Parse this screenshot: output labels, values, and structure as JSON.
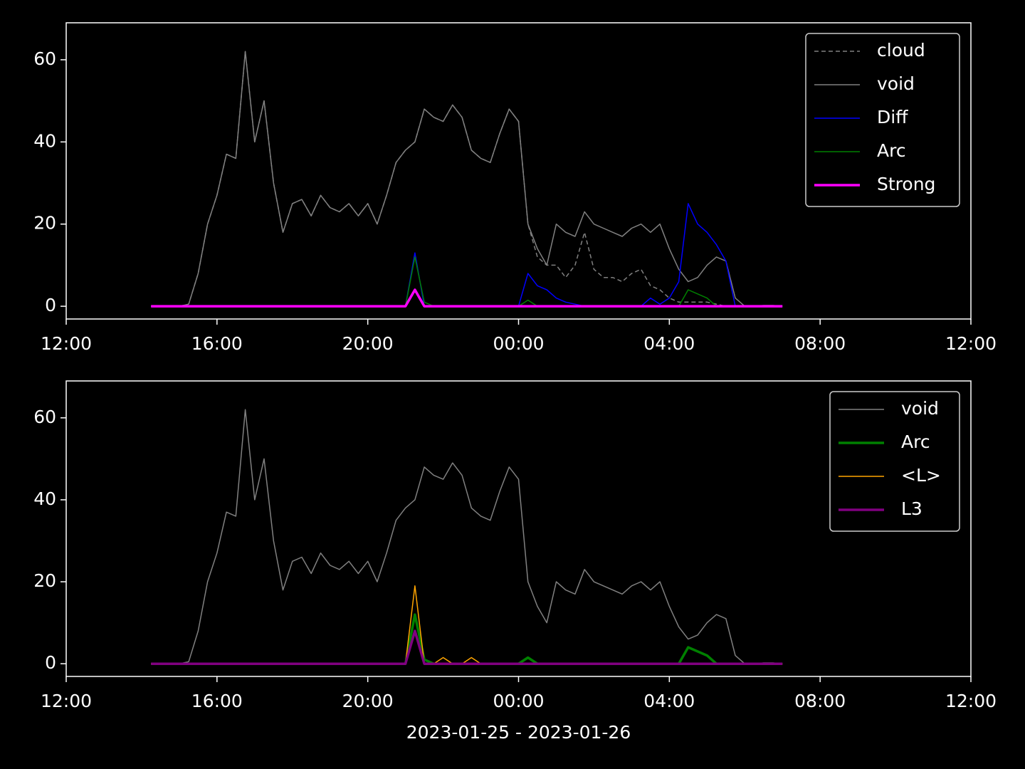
{
  "chart_data": [
    {
      "type": "line",
      "x": [
        2.25,
        2.5,
        2.75,
        3.0,
        3.25,
        3.5,
        3.75,
        4.0,
        4.25,
        4.5,
        4.75,
        5.0,
        5.25,
        5.5,
        5.75,
        6.0,
        6.25,
        6.5,
        6.75,
        7.0,
        7.25,
        7.5,
        7.75,
        8.0,
        8.25,
        8.5,
        8.75,
        9.0,
        9.25,
        9.5,
        9.75,
        10.0,
        10.25,
        10.5,
        10.75,
        11.0,
        11.25,
        11.5,
        11.75,
        12.0,
        12.25,
        12.5,
        12.75,
        13.0,
        13.25,
        13.5,
        13.75,
        14.0,
        14.25,
        14.5,
        14.75,
        15.0,
        15.25,
        15.5,
        15.75,
        16.0,
        16.25,
        16.5,
        16.75,
        17.0,
        17.25,
        17.5,
        17.75,
        18.0,
        18.25,
        18.5,
        18.75,
        19.0
      ],
      "series": [
        {
          "name": "cloud",
          "color": "#808080",
          "dashed": true,
          "linewidth": 1.5,
          "values": [
            0,
            0,
            0,
            0,
            0.5,
            8,
            20,
            27,
            37,
            36,
            62,
            40,
            50,
            30,
            18,
            25,
            26,
            22,
            27,
            24,
            23,
            25,
            22,
            25,
            20,
            27,
            35,
            38,
            40,
            48,
            46,
            45,
            49,
            46,
            38,
            36,
            35,
            42,
            48,
            45,
            20,
            12,
            10,
            10,
            7,
            10,
            18,
            9,
            7,
            7,
            6,
            8,
            9,
            5,
            4,
            2,
            1,
            1,
            1,
            1,
            0.5,
            0,
            0,
            0,
            0,
            0,
            0,
            0
          ]
        },
        {
          "name": "void",
          "color": "#808080",
          "dashed": false,
          "linewidth": 1.5,
          "values": [
            0,
            0,
            0,
            0,
            0.5,
            8,
            20,
            27,
            37,
            36,
            62,
            40,
            50,
            30,
            18,
            25,
            26,
            22,
            27,
            24,
            23,
            25,
            22,
            25,
            20,
            27,
            35,
            38,
            40,
            48,
            46,
            45,
            49,
            46,
            38,
            36,
            35,
            42,
            48,
            45,
            20,
            14,
            10,
            20,
            18,
            17,
            23,
            20,
            19,
            18,
            17,
            19,
            20,
            18,
            20,
            14,
            9,
            6,
            7,
            10,
            12,
            11,
            2,
            0,
            0,
            0.2,
            0.2,
            0
          ]
        },
        {
          "name": "Diff",
          "color": "#0000ff",
          "dashed": false,
          "linewidth": 1.5,
          "values": [
            0,
            0,
            0,
            0,
            0,
            0,
            0,
            0,
            0,
            0,
            0,
            0,
            0,
            0,
            0,
            0,
            0,
            0,
            0,
            0,
            0,
            0,
            0,
            0,
            0,
            0,
            0,
            0,
            13,
            0,
            0,
            0,
            0,
            0,
            0,
            0,
            0,
            0,
            0,
            0,
            8,
            5,
            4,
            2,
            1,
            0.5,
            0,
            0,
            0,
            0,
            0,
            0,
            0,
            2,
            0.5,
            2,
            6,
            25,
            20,
            18,
            15,
            11,
            0,
            0,
            0,
            0,
            0,
            0
          ]
        },
        {
          "name": "Arc",
          "color": "#008000",
          "dashed": false,
          "linewidth": 1.5,
          "values": [
            0,
            0,
            0,
            0,
            0,
            0,
            0,
            0,
            0,
            0,
            0,
            0,
            0,
            0,
            0,
            0,
            0,
            0,
            0,
            0,
            0,
            0,
            0,
            0,
            0,
            0,
            0,
            0,
            12,
            1,
            0,
            0,
            0,
            0,
            0,
            0,
            0,
            0,
            0,
            0,
            1.5,
            0,
            0,
            0,
            0,
            0,
            0,
            0,
            0,
            0,
            0,
            0,
            0,
            0,
            0,
            0,
            0,
            4,
            3,
            2,
            0,
            0,
            0,
            0,
            0,
            0,
            0,
            0
          ]
        },
        {
          "name": "Strong",
          "color": "#ff00ff",
          "dashed": false,
          "linewidth": 3.5,
          "values": [
            0,
            0,
            0,
            0,
            0,
            0,
            0,
            0,
            0,
            0,
            0,
            0,
            0,
            0,
            0,
            0,
            0,
            0,
            0,
            0,
            0,
            0,
            0,
            0,
            0,
            0,
            0,
            0,
            4,
            0,
            0,
            0,
            0,
            0,
            0,
            0,
            0,
            0,
            0,
            0,
            0,
            0,
            0,
            0,
            0,
            0,
            0,
            0,
            0,
            0,
            0,
            0,
            0,
            0,
            0,
            0,
            0,
            0,
            0,
            0,
            0,
            0,
            0,
            0,
            0,
            0,
            0,
            0
          ]
        }
      ],
      "xlim": [
        0,
        24
      ],
      "xticks": [
        {
          "value": 0,
          "label": "12:00"
        },
        {
          "value": 4,
          "label": "16:00"
        },
        {
          "value": 8,
          "label": "20:00"
        },
        {
          "value": 12,
          "label": "00:00"
        },
        {
          "value": 16,
          "label": "04:00"
        },
        {
          "value": 20,
          "label": "08:00"
        },
        {
          "value": 24,
          "label": "12:00"
        }
      ],
      "ylim": [
        -3.1,
        69
      ],
      "yticks": [
        0,
        20,
        40,
        60
      ],
      "legend": "upper-right"
    },
    {
      "type": "line",
      "x": [
        2.25,
        2.5,
        2.75,
        3.0,
        3.25,
        3.5,
        3.75,
        4.0,
        4.25,
        4.5,
        4.75,
        5.0,
        5.25,
        5.5,
        5.75,
        6.0,
        6.25,
        6.5,
        6.75,
        7.0,
        7.25,
        7.5,
        7.75,
        8.0,
        8.25,
        8.5,
        8.75,
        9.0,
        9.25,
        9.5,
        9.75,
        10.0,
        10.25,
        10.5,
        10.75,
        11.0,
        11.25,
        11.5,
        11.75,
        12.0,
        12.25,
        12.5,
        12.75,
        13.0,
        13.25,
        13.5,
        13.75,
        14.0,
        14.25,
        14.5,
        14.75,
        15.0,
        15.25,
        15.5,
        15.75,
        16.0,
        16.25,
        16.5,
        16.75,
        17.0,
        17.25,
        17.5,
        17.75,
        18.0,
        18.25,
        18.5,
        18.75,
        19.0
      ],
      "series": [
        {
          "name": "void",
          "color": "#808080",
          "dashed": false,
          "linewidth": 1.5,
          "values": [
            0,
            0,
            0,
            0,
            0.5,
            8,
            20,
            27,
            37,
            36,
            62,
            40,
            50,
            30,
            18,
            25,
            26,
            22,
            27,
            24,
            23,
            25,
            22,
            25,
            20,
            27,
            35,
            38,
            40,
            48,
            46,
            45,
            49,
            46,
            38,
            36,
            35,
            42,
            48,
            45,
            20,
            14,
            10,
            20,
            18,
            17,
            23,
            20,
            19,
            18,
            17,
            19,
            20,
            18,
            20,
            14,
            9,
            6,
            7,
            10,
            12,
            11,
            2,
            0,
            0,
            0.2,
            0.2,
            0
          ]
        },
        {
          "name": "Arc",
          "color": "#008000",
          "dashed": false,
          "linewidth": 3.5,
          "values": [
            0,
            0,
            0,
            0,
            0,
            0,
            0,
            0,
            0,
            0,
            0,
            0,
            0,
            0,
            0,
            0,
            0,
            0,
            0,
            0,
            0,
            0,
            0,
            0,
            0,
            0,
            0,
            0,
            12,
            1,
            0,
            0,
            0,
            0,
            0,
            0,
            0,
            0,
            0,
            0,
            1.5,
            0,
            0,
            0,
            0,
            0,
            0,
            0,
            0,
            0,
            0,
            0,
            0,
            0,
            0,
            0,
            0,
            4,
            3,
            2,
            0,
            0,
            0,
            0,
            0,
            0,
            0,
            0
          ]
        },
        {
          "name": "<L>",
          "color": "#ffa500",
          "dashed": false,
          "linewidth": 1.5,
          "values": [
            0,
            0,
            0,
            0,
            0,
            0,
            0,
            0,
            0,
            0,
            0,
            0,
            0,
            0,
            0,
            0,
            0,
            0,
            0,
            0,
            0,
            0,
            0,
            0,
            0,
            0,
            0,
            0,
            19,
            0,
            0,
            1.5,
            0,
            0,
            1.5,
            0,
            0,
            0,
            0,
            0,
            0,
            0,
            0,
            0,
            0,
            0,
            0,
            0,
            0,
            0,
            0,
            0,
            0,
            0,
            0,
            0,
            0,
            0,
            0,
            0,
            0,
            0,
            0,
            0,
            0,
            0,
            0,
            0
          ]
        },
        {
          "name": "L3",
          "color": "#800080",
          "dashed": false,
          "linewidth": 3.5,
          "values": [
            0,
            0,
            0,
            0,
            0,
            0,
            0,
            0,
            0,
            0,
            0,
            0,
            0,
            0,
            0,
            0,
            0,
            0,
            0,
            0,
            0,
            0,
            0,
            0,
            0,
            0,
            0,
            0,
            8,
            0,
            0,
            0,
            0,
            0,
            0,
            0,
            0,
            0,
            0,
            0,
            0,
            0,
            0,
            0,
            0,
            0,
            0,
            0,
            0,
            0,
            0,
            0,
            0,
            0,
            0,
            0,
            0,
            0,
            0,
            0,
            0,
            0,
            0,
            0,
            0,
            0,
            0,
            0
          ]
        }
      ],
      "xlim": [
        0,
        24
      ],
      "xticks": [
        {
          "value": 0,
          "label": "12:00"
        },
        {
          "value": 4,
          "label": "16:00"
        },
        {
          "value": 8,
          "label": "20:00"
        },
        {
          "value": 12,
          "label": "00:00"
        },
        {
          "value": 16,
          "label": "04:00"
        },
        {
          "value": 20,
          "label": "08:00"
        },
        {
          "value": 24,
          "label": "12:00"
        }
      ],
      "ylim": [
        -3.1,
        69
      ],
      "yticks": [
        0,
        20,
        40,
        60
      ],
      "xlabel": "2023-01-25 - 2023-01-26",
      "legend": "upper-right"
    }
  ]
}
